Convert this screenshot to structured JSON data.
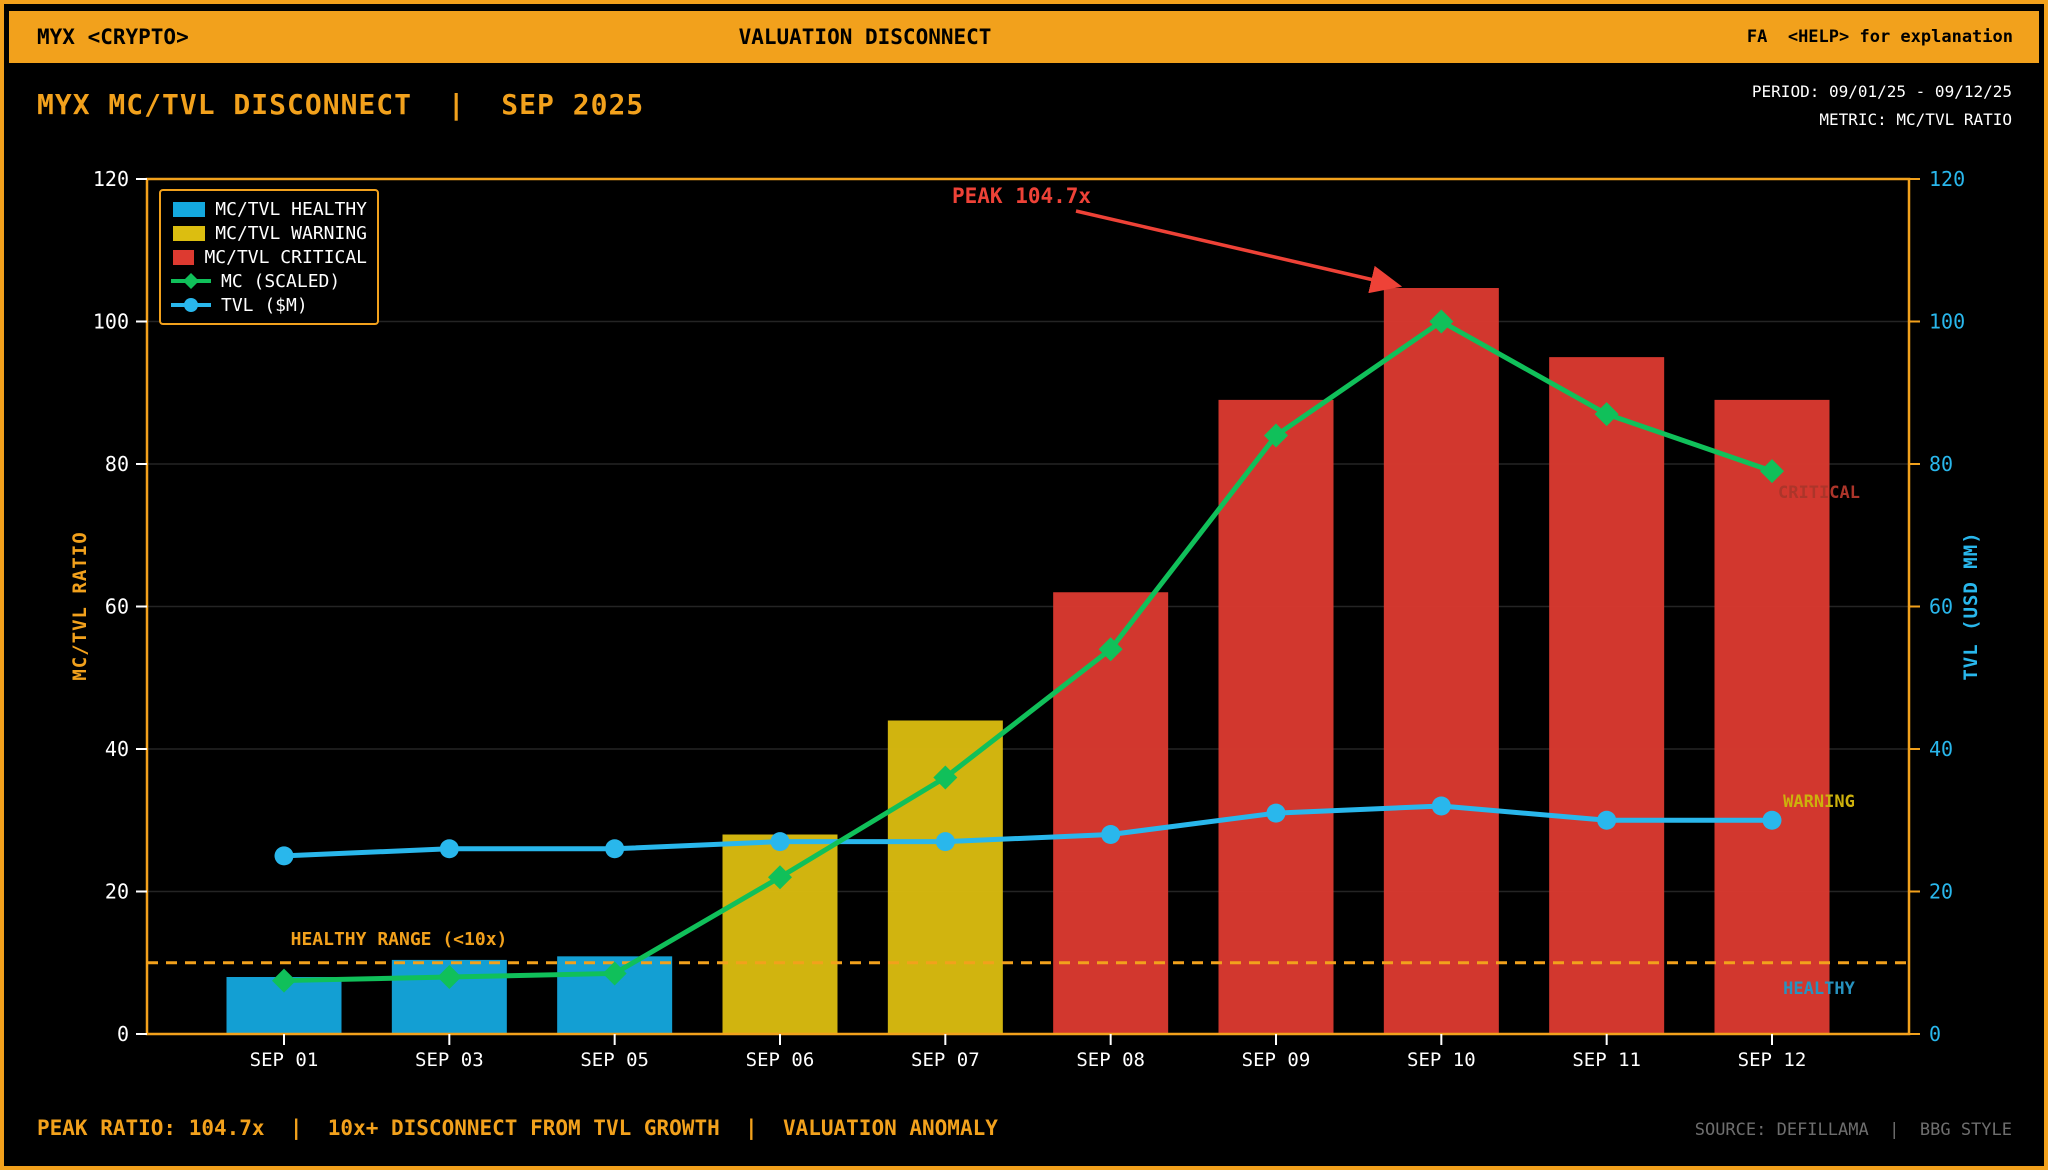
{
  "header": {
    "left": "MYX <CRYPTO>",
    "center": "VALUATION DISCONNECT",
    "right": "FA  <HELP> for explanation"
  },
  "title": "MYX MC/TVL DISCONNECT  |  SEP 2025",
  "meta": {
    "period": "PERIOD: 09/01/25 - 09/12/25",
    "metric": "METRIC: MC/TVL RATIO"
  },
  "footer": {
    "left": "PEAK RATIO: 104.7x  |  10x+ DISCONNECT FROM TVL GROWTH  |  VALUATION ANOMALY",
    "right": "SOURCE: DEFILLAMA  |  BBG STYLE"
  },
  "colors": {
    "accent": "#F2A11C",
    "background": "#000000",
    "healthy": "#14A8DE",
    "warning": "#DCBE10",
    "critical": "#DD3A30",
    "mc": "#10C05A",
    "tvl": "#29B7EC",
    "grid": "rgba(255,255,255,0.14)",
    "peak": "#EE4237",
    "zone_critical": "#AC352A",
    "zone_warning": "#CDB10C",
    "zone_healthy": "#2793C0",
    "tick_label_left": "#FFFFFF",
    "tick_label_right": "#29B7EC",
    "x_label": "#FFFFFF",
    "source_text": "#6E6E6E"
  },
  "legend": [
    {
      "label": "MC/TVL HEALTHY",
      "swatch": "rect",
      "color_key": "healthy"
    },
    {
      "label": "MC/TVL WARNING",
      "swatch": "rect",
      "color_key": "warning"
    },
    {
      "label": "MC/TVL CRITICAL",
      "swatch": "rect",
      "color_key": "critical"
    },
    {
      "label": "MC (SCALED)",
      "swatch": "line-diamond",
      "color_key": "mc"
    },
    {
      "label": "TVL ($M)",
      "swatch": "line-circle",
      "color_key": "tvl"
    }
  ],
  "chart_data": {
    "type": "bar",
    "categories": [
      "SEP 01",
      "SEP 03",
      "SEP 05",
      "SEP 06",
      "SEP 07",
      "SEP 08",
      "SEP 09",
      "SEP 10",
      "SEP 11",
      "SEP 12"
    ],
    "series": [
      {
        "name": "MC/TVL RATIO",
        "kind": "bar",
        "values": [
          8,
          10.4,
          10.9,
          28,
          44,
          62,
          89,
          104.7,
          95,
          89
        ],
        "statuses": [
          "healthy",
          "healthy",
          "healthy",
          "warning",
          "warning",
          "critical",
          "critical",
          "critical",
          "critical",
          "critical"
        ]
      },
      {
        "name": "MC (SCALED)",
        "kind": "line",
        "marker": "diamond",
        "color_key": "mc",
        "values": [
          7.5,
          8,
          8.5,
          22,
          36,
          54,
          84,
          100,
          87,
          79
        ]
      },
      {
        "name": "TVL ($M)",
        "kind": "line",
        "marker": "circle",
        "color_key": "tvl",
        "values": [
          25,
          26,
          26,
          27,
          27,
          28,
          31,
          32,
          30,
          30
        ]
      }
    ],
    "ylim": [
      0,
      120
    ],
    "yticks": [
      0,
      20,
      40,
      60,
      80,
      100,
      120
    ],
    "ylabel_left": "MC/TVL RATIO",
    "ylabel_right": "TVL (USD MM)",
    "grid": "horizontal",
    "legend_position": "top-left",
    "threshold": {
      "value": 10,
      "label": "HEALTHY RANGE (<10x)"
    },
    "annotations": [
      {
        "type": "arrow-label",
        "label": "PEAK 104.7x",
        "category": "SEP 10",
        "value": 104.7
      }
    ],
    "zone_labels": [
      {
        "text": "CRITICAL",
        "y": 76,
        "color_key": "zone_critical"
      },
      {
        "text": "WARNING",
        "y": 32.5,
        "color_key": "zone_warning"
      },
      {
        "text": "HEALTHY",
        "y": 6.3,
        "color_key": "zone_healthy"
      }
    ]
  }
}
